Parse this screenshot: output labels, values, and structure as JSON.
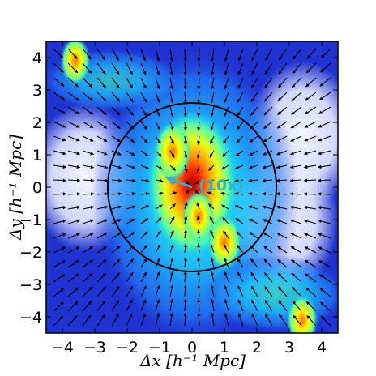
{
  "chart_data": {
    "type": "heatmap",
    "title": "",
    "xlabel": "Δx [h⁻¹ Mpc]",
    "ylabel": "Δy [h⁻¹ Mpc]",
    "xlim": [
      -4.5,
      4.5
    ],
    "ylim": [
      -4.5,
      4.5
    ],
    "xticks": [
      -4,
      -3,
      -2,
      -1,
      0,
      1,
      2,
      3,
      4
    ],
    "yticks": [
      -4,
      -3,
      -2,
      -1,
      0,
      1,
      2,
      3,
      4
    ],
    "colormap": "jet",
    "background_color": "#1a2fd0",
    "density_peaks": [
      {
        "x": 0.0,
        "y": 0.1,
        "amplitude": 1.0
      },
      {
        "x": -0.6,
        "y": 1.1,
        "amplitude": 0.7
      },
      {
        "x": 1.0,
        "y": -1.7,
        "amplitude": 0.6
      },
      {
        "x": 0.2,
        "y": -0.9,
        "amplitude": 0.55
      },
      {
        "x": 3.4,
        "y": -4.1,
        "amplitude": 0.5
      },
      {
        "x": -3.6,
        "y": 3.9,
        "amplitude": 0.45
      }
    ],
    "void_regions": [
      {
        "x": -3.3,
        "y": 0.3
      },
      {
        "x": 3.4,
        "y": 1.6
      },
      {
        "x": 2.8,
        "y": -1.0
      }
    ],
    "circle": {
      "center": [
        0,
        0
      ],
      "radius": 2.6,
      "color": "#000000"
    },
    "mean_vector": {
      "from": [
        0,
        0
      ],
      "to": [
        -0.8,
        0.3
      ],
      "color": "#34b3c8",
      "label": "(10x)"
    },
    "velocity_field": {
      "grid_step": 0.45,
      "color": "#000000",
      "description": "inflow toward center"
    }
  }
}
